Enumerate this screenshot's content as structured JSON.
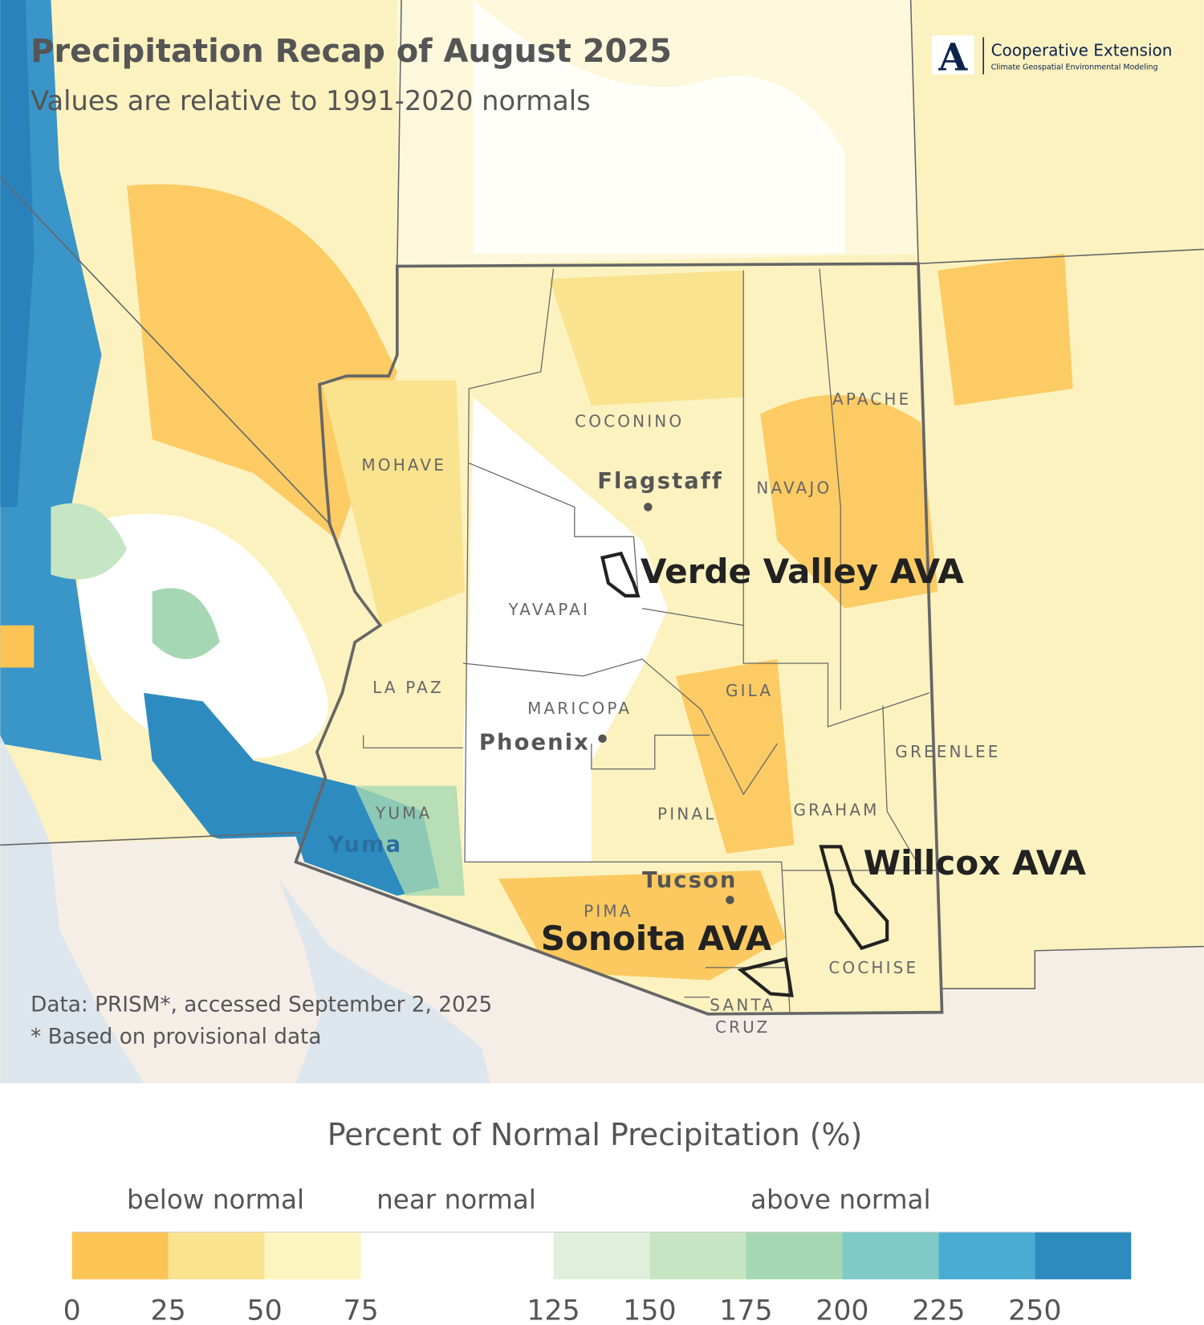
{
  "header": {
    "title": "Precipitation Recap of August 2025",
    "subtitle": "Values are relative to 1991-2020 normals",
    "logo": "Cooperative Extension",
    "logo_sub": "Climate Geospatial Environmental Modeling"
  },
  "map": {
    "counties": [
      "COCONINO",
      "MOHAVE",
      "NAVAJO",
      "APACHE",
      "YAVAPAI",
      "LA PAZ",
      "MARICOPA",
      "GILA",
      "GREENLEE",
      "YUMA",
      "PINAL",
      "GRAHAM",
      "PIMA",
      "COCHISE",
      "SANTA",
      "CRUZ"
    ],
    "cities": [
      "Flagstaff",
      "Phoenix",
      "Tucson",
      "Yuma"
    ],
    "avas": [
      "Verde Valley AVA",
      "Willcox AVA",
      "Sonoita AVA"
    ]
  },
  "notes": [
    "Data: PRISM*, accessed September 2, 2025",
    "* Based on provisional data"
  ],
  "legend": {
    "title": "Percent of Normal Precipitation (%)",
    "categories": [
      "below normal",
      "near normal",
      "above normal"
    ],
    "ticks": [
      0,
      25,
      50,
      75,
      125,
      150,
      175,
      200,
      225,
      250
    ],
    "colors": [
      "#fbc454",
      "#fae38e",
      "#fcf5bf",
      "#ffffff",
      "#e0efdb",
      "#c6e5c3",
      "#a5d8b2",
      "#7fcac6",
      "#4aacd3",
      "#2d8bc0"
    ]
  }
}
